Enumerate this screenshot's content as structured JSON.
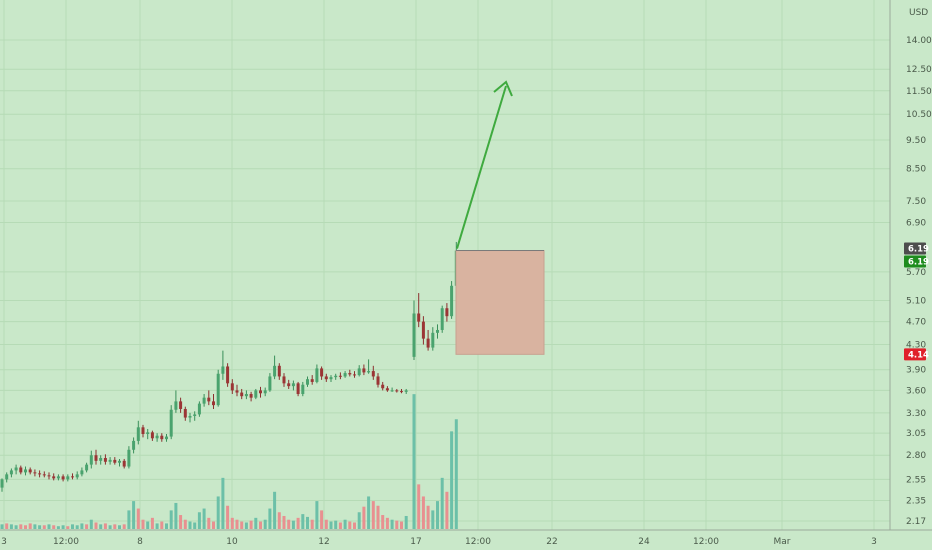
{
  "chart_data": {
    "type": "candlestick",
    "title": "",
    "currency": "USD",
    "y_scale": "log",
    "ylim": [
      2.1,
      15.2
    ],
    "y_tick_labels": [
      "14.00",
      "12.50",
      "11.50",
      "10.50",
      "9.50",
      "8.50",
      "7.50",
      "6.90",
      "5.70",
      "5.10",
      "4.70",
      "4.30",
      "3.90",
      "3.60",
      "3.30",
      "3.05",
      "2.80",
      "2.55",
      "2.35",
      "2.17"
    ],
    "x_tick_labels": [
      "3",
      "12:00",
      "8",
      "10",
      "12",
      "17",
      "12:00",
      "22",
      "24",
      "12:00",
      "Mar",
      "3"
    ],
    "price_badges": [
      {
        "label": "6.19",
        "color": "#4d4d4d"
      },
      {
        "label": "6.19",
        "color": "#1e8c1e"
      },
      {
        "label": "4.14",
        "color": "#e0202a"
      }
    ],
    "candles": [
      [
        2.47,
        2.56,
        2.43,
        2.55
      ],
      [
        2.55,
        2.62,
        2.52,
        2.6
      ],
      [
        2.6,
        2.66,
        2.57,
        2.64
      ],
      [
        2.64,
        2.7,
        2.6,
        2.67
      ],
      [
        2.67,
        2.69,
        2.6,
        2.62
      ],
      [
        2.62,
        2.68,
        2.59,
        2.65
      ],
      [
        2.65,
        2.67,
        2.6,
        2.62
      ],
      [
        2.62,
        2.65,
        2.58,
        2.61
      ],
      [
        2.61,
        2.64,
        2.57,
        2.6
      ],
      [
        2.6,
        2.63,
        2.57,
        2.59
      ],
      [
        2.59,
        2.62,
        2.55,
        2.58
      ],
      [
        2.58,
        2.61,
        2.54,
        2.56
      ],
      [
        2.56,
        2.6,
        2.54,
        2.58
      ],
      [
        2.58,
        2.6,
        2.53,
        2.55
      ],
      [
        2.55,
        2.6,
        2.53,
        2.58
      ],
      [
        2.58,
        2.61,
        2.55,
        2.57
      ],
      [
        2.57,
        2.63,
        2.55,
        2.6
      ],
      [
        2.6,
        2.67,
        2.58,
        2.64
      ],
      [
        2.64,
        2.72,
        2.62,
        2.7
      ],
      [
        2.7,
        2.85,
        2.66,
        2.8
      ],
      [
        2.8,
        2.86,
        2.7,
        2.74
      ],
      [
        2.74,
        2.8,
        2.7,
        2.77
      ],
      [
        2.77,
        2.81,
        2.7,
        2.73
      ],
      [
        2.73,
        2.78,
        2.7,
        2.75
      ],
      [
        2.75,
        2.78,
        2.7,
        2.72
      ],
      [
        2.72,
        2.76,
        2.68,
        2.74
      ],
      [
        2.74,
        2.76,
        2.66,
        2.68
      ],
      [
        2.68,
        2.9,
        2.66,
        2.86
      ],
      [
        2.86,
        3.0,
        2.82,
        2.96
      ],
      [
        2.96,
        3.2,
        2.92,
        3.12
      ],
      [
        3.12,
        3.15,
        3.0,
        3.04
      ],
      [
        3.04,
        3.1,
        2.98,
        3.06
      ],
      [
        3.06,
        3.08,
        2.96,
        2.99
      ],
      [
        2.99,
        3.05,
        2.95,
        3.02
      ],
      [
        3.02,
        3.05,
        2.95,
        2.98
      ],
      [
        2.98,
        3.04,
        2.95,
        3.01
      ],
      [
        3.01,
        3.4,
        2.98,
        3.34
      ],
      [
        3.34,
        3.6,
        3.3,
        3.45
      ],
      [
        3.45,
        3.5,
        3.3,
        3.35
      ],
      [
        3.35,
        3.38,
        3.2,
        3.24
      ],
      [
        3.24,
        3.3,
        3.18,
        3.26
      ],
      [
        3.26,
        3.32,
        3.2,
        3.28
      ],
      [
        3.28,
        3.45,
        3.25,
        3.42
      ],
      [
        3.42,
        3.55,
        3.38,
        3.5
      ],
      [
        3.5,
        3.6,
        3.4,
        3.45
      ],
      [
        3.45,
        3.55,
        3.35,
        3.4
      ],
      [
        3.4,
        3.9,
        3.38,
        3.84
      ],
      [
        3.84,
        4.2,
        3.75,
        3.95
      ],
      [
        3.95,
        4.0,
        3.65,
        3.7
      ],
      [
        3.7,
        3.76,
        3.55,
        3.6
      ],
      [
        3.6,
        3.68,
        3.52,
        3.57
      ],
      [
        3.57,
        3.62,
        3.48,
        3.52
      ],
      [
        3.52,
        3.6,
        3.48,
        3.55
      ],
      [
        3.55,
        3.58,
        3.45,
        3.5
      ],
      [
        3.5,
        3.62,
        3.48,
        3.6
      ],
      [
        3.6,
        3.65,
        3.5,
        3.56
      ],
      [
        3.56,
        3.64,
        3.52,
        3.6
      ],
      [
        3.6,
        3.85,
        3.58,
        3.8
      ],
      [
        3.8,
        4.12,
        3.76,
        3.96
      ],
      [
        3.96,
        4.0,
        3.75,
        3.8
      ],
      [
        3.8,
        3.85,
        3.65,
        3.7
      ],
      [
        3.7,
        3.75,
        3.62,
        3.66
      ],
      [
        3.66,
        3.74,
        3.6,
        3.7
      ],
      [
        3.7,
        3.72,
        3.52,
        3.55
      ],
      [
        3.55,
        3.72,
        3.52,
        3.68
      ],
      [
        3.68,
        3.8,
        3.65,
        3.76
      ],
      [
        3.76,
        3.82,
        3.68,
        3.72
      ],
      [
        3.72,
        3.98,
        3.7,
        3.92
      ],
      [
        3.92,
        3.95,
        3.75,
        3.8
      ],
      [
        3.8,
        3.84,
        3.72,
        3.76
      ],
      [
        3.76,
        3.82,
        3.72,
        3.79
      ],
      [
        3.79,
        3.84,
        3.75,
        3.81
      ],
      [
        3.81,
        3.86,
        3.76,
        3.8
      ],
      [
        3.8,
        3.88,
        3.78,
        3.85
      ],
      [
        3.85,
        3.9,
        3.8,
        3.83
      ],
      [
        3.83,
        3.88,
        3.78,
        3.82
      ],
      [
        3.82,
        3.97,
        3.8,
        3.92
      ],
      [
        3.92,
        3.98,
        3.82,
        3.86
      ],
      [
        3.86,
        4.06,
        3.84,
        3.88
      ],
      [
        3.88,
        3.96,
        3.75,
        3.8
      ],
      [
        3.8,
        3.85,
        3.64,
        3.68
      ],
      [
        3.68,
        3.72,
        3.6,
        3.63
      ],
      [
        3.63,
        3.66,
        3.58,
        3.6
      ],
      [
        3.6,
        3.64,
        3.58,
        3.6
      ],
      [
        3.6,
        3.62,
        3.57,
        3.59
      ],
      [
        3.59,
        3.62,
        3.56,
        3.58
      ],
      [
        3.58,
        3.62,
        3.55,
        3.6
      ],
      [
        4.1,
        5.1,
        4.05,
        4.85
      ],
      [
        4.85,
        5.25,
        4.6,
        4.7
      ],
      [
        4.7,
        4.8,
        4.3,
        4.4
      ],
      [
        4.4,
        4.55,
        4.2,
        4.25
      ],
      [
        4.25,
        4.6,
        4.2,
        4.5
      ],
      [
        4.5,
        4.65,
        4.4,
        4.55
      ],
      [
        4.55,
        5.0,
        4.5,
        4.95
      ],
      [
        4.95,
        5.05,
        4.7,
        4.8
      ],
      [
        4.8,
        5.5,
        4.75,
        5.4
      ],
      [
        5.4,
        6.4,
        5.3,
        6.19
      ]
    ],
    "volumes": [
      [
        5,
        0
      ],
      [
        6,
        1
      ],
      [
        5,
        0
      ],
      [
        4,
        0
      ],
      [
        5,
        1
      ],
      [
        4,
        1
      ],
      [
        6,
        1
      ],
      [
        5,
        0
      ],
      [
        4,
        0
      ],
      [
        4,
        1
      ],
      [
        5,
        0
      ],
      [
        4,
        1
      ],
      [
        3,
        0
      ],
      [
        4,
        0
      ],
      [
        3,
        1
      ],
      [
        5,
        0
      ],
      [
        4,
        0
      ],
      [
        6,
        0
      ],
      [
        5,
        1
      ],
      [
        10,
        0
      ],
      [
        7,
        1
      ],
      [
        5,
        0
      ],
      [
        6,
        1
      ],
      [
        4,
        0
      ],
      [
        5,
        1
      ],
      [
        4,
        0
      ],
      [
        5,
        1
      ],
      [
        20,
        0
      ],
      [
        30,
        0
      ],
      [
        22,
        1
      ],
      [
        10,
        1
      ],
      [
        8,
        0
      ],
      [
        12,
        1
      ],
      [
        6,
        0
      ],
      [
        8,
        1
      ],
      [
        6,
        0
      ],
      [
        20,
        0
      ],
      [
        28,
        0
      ],
      [
        15,
        1
      ],
      [
        10,
        1
      ],
      [
        8,
        0
      ],
      [
        7,
        0
      ],
      [
        18,
        0
      ],
      [
        22,
        0
      ],
      [
        12,
        1
      ],
      [
        8,
        1
      ],
      [
        35,
        0
      ],
      [
        55,
        0
      ],
      [
        25,
        1
      ],
      [
        12,
        1
      ],
      [
        10,
        1
      ],
      [
        8,
        1
      ],
      [
        7,
        0
      ],
      [
        9,
        1
      ],
      [
        12,
        0
      ],
      [
        8,
        1
      ],
      [
        10,
        0
      ],
      [
        22,
        0
      ],
      [
        40,
        0
      ],
      [
        18,
        1
      ],
      [
        14,
        1
      ],
      [
        10,
        1
      ],
      [
        9,
        0
      ],
      [
        12,
        1
      ],
      [
        16,
        0
      ],
      [
        13,
        0
      ],
      [
        10,
        1
      ],
      [
        30,
        0
      ],
      [
        20,
        1
      ],
      [
        10,
        1
      ],
      [
        8,
        0
      ],
      [
        9,
        0
      ],
      [
        7,
        1
      ],
      [
        10,
        0
      ],
      [
        8,
        1
      ],
      [
        7,
        1
      ],
      [
        18,
        0
      ],
      [
        24,
        1
      ],
      [
        35,
        0
      ],
      [
        30,
        1
      ],
      [
        25,
        1
      ],
      [
        15,
        1
      ],
      [
        12,
        1
      ],
      [
        10,
        0
      ],
      [
        9,
        1
      ],
      [
        8,
        1
      ],
      [
        14,
        0
      ],
      [
        145,
        0
      ],
      [
        48,
        1
      ],
      [
        35,
        1
      ],
      [
        25,
        1
      ],
      [
        20,
        0
      ],
      [
        30,
        0
      ],
      [
        55,
        0
      ],
      [
        40,
        1
      ],
      [
        105,
        0
      ],
      [
        118,
        0
      ]
    ]
  }
}
